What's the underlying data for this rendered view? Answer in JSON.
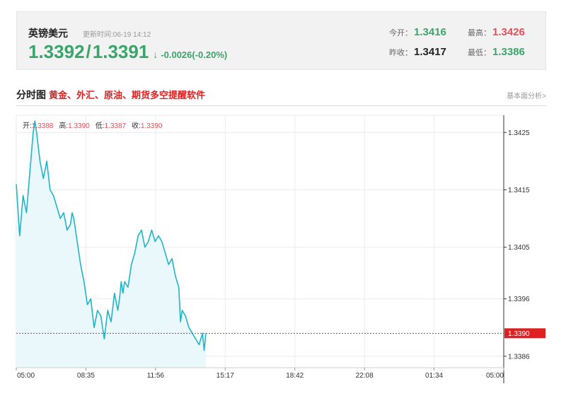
{
  "quote": {
    "name": "英镑美元",
    "update_label": "更新时间:",
    "update_time": "06-19 14:12",
    "bid": "1.3392",
    "separator": "/",
    "ask": "1.3391",
    "arrow": "↓",
    "change": "-0.0026(-0.20%)",
    "open_label": "今开：",
    "open": "1.3416",
    "high_label": "最高：",
    "high": "1.3426",
    "prev_close_label": "昨收：",
    "prev_close": "1.3417",
    "low_label": "最低：",
    "low": "1.3386"
  },
  "section": {
    "title": "分时图",
    "promo": "黄金、外汇、原油、期货多空提醒软件",
    "link": "基本面分析>"
  },
  "colors": {
    "up": "#e0505a",
    "down": "#3aa56b",
    "line": "#1fb5c9",
    "fill": "#eaf7fb",
    "current_marker": "#e02020"
  },
  "chart_data": {
    "type": "area",
    "title": "",
    "xlabel": "",
    "ylabel": "",
    "ohlc": {
      "open_label": "开:",
      "open": "1.3388",
      "high_label": "高:",
      "high": "1.3390",
      "low_label": "低:",
      "low": "1.3387",
      "close_label": "收:",
      "close": "1.3390"
    },
    "x_ticks": [
      "05:00",
      "08:35",
      "11:56",
      "15:17",
      "18:42",
      "22:08",
      "01:34",
      "05:00"
    ],
    "y_ticks": [
      "1.3425",
      "1.3415",
      "1.3405",
      "1.3396",
      "1.3386"
    ],
    "ylim": [
      1.3384,
      1.3428
    ],
    "current_price": "1.3390",
    "session_minutes": 1440,
    "series": [
      {
        "x": [
          0,
          10,
          20,
          30,
          40,
          50,
          55,
          60,
          70,
          80,
          90,
          100,
          110,
          120,
          130,
          140,
          150,
          160,
          165,
          170,
          180,
          190,
          200,
          210,
          220,
          230,
          240,
          250,
          260,
          270,
          280,
          290,
          300,
          305,
          310,
          315,
          320,
          330,
          340,
          350,
          360,
          370,
          380,
          390,
          400,
          410,
          420,
          430,
          440,
          450,
          460,
          470,
          480,
          485,
          490,
          500,
          510,
          520,
          530,
          540,
          550,
          555,
          560
        ],
        "y": [
          1.3416,
          1.3407,
          1.3414,
          1.3411,
          1.3418,
          1.3425,
          1.3427,
          1.3425,
          1.342,
          1.3417,
          1.342,
          1.3415,
          1.3414,
          1.3412,
          1.341,
          1.3411,
          1.3408,
          1.3409,
          1.3411,
          1.341,
          1.3406,
          1.3402,
          1.3399,
          1.3395,
          1.3396,
          1.3391,
          1.3394,
          1.3393,
          1.3389,
          1.3394,
          1.3392,
          1.3397,
          1.3394,
          1.3396,
          1.3399,
          1.3397,
          1.3399,
          1.3398,
          1.3402,
          1.3404,
          1.3407,
          1.3408,
          1.3405,
          1.3406,
          1.3408,
          1.3406,
          1.3407,
          1.3406,
          1.3404,
          1.3402,
          1.3403,
          1.34,
          1.3398,
          1.3392,
          1.3394,
          1.3393,
          1.3391,
          1.339,
          1.3389,
          1.3388,
          1.339,
          1.3387,
          1.339
        ]
      }
    ]
  }
}
